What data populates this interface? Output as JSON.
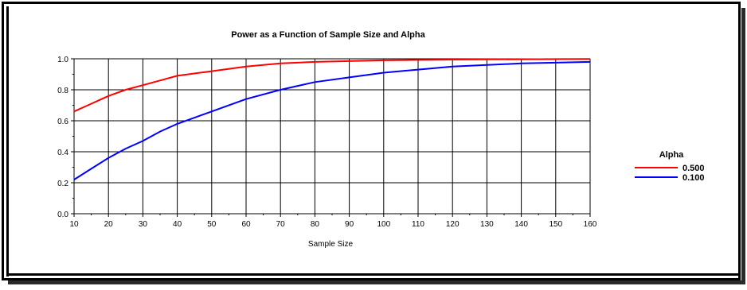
{
  "chart_data": {
    "type": "line",
    "title": "Power as a Function of Sample Size and Alpha",
    "xlabel": "Sample Size",
    "ylabel": "",
    "xlim": [
      10,
      160
    ],
    "ylim": [
      0.0,
      1.0
    ],
    "xticks": [
      "10",
      "20",
      "30",
      "40",
      "50",
      "60",
      "70",
      "80",
      "90",
      "100",
      "110",
      "120",
      "130",
      "140",
      "150",
      "160"
    ],
    "yticks": [
      "0.0",
      "0.2",
      "0.4",
      "0.6",
      "0.8",
      "1.0"
    ],
    "grid": true,
    "legend": {
      "title": "Alpha",
      "placement": "right"
    },
    "series": [
      {
        "name": "0.500",
        "color": "#ff0000",
        "x": [
          10,
          15,
          20,
          25,
          30,
          35,
          40,
          50,
          60,
          70,
          80,
          90,
          100,
          110,
          120,
          130,
          140,
          150,
          160
        ],
        "y": [
          0.66,
          0.71,
          0.76,
          0.8,
          0.83,
          0.86,
          0.89,
          0.92,
          0.95,
          0.97,
          0.98,
          0.985,
          0.99,
          0.993,
          0.995,
          0.996,
          0.997,
          0.998,
          0.999
        ]
      },
      {
        "name": "0.100",
        "color": "#0000ff",
        "x": [
          10,
          15,
          20,
          25,
          30,
          35,
          40,
          50,
          60,
          70,
          80,
          90,
          100,
          110,
          120,
          130,
          140,
          150,
          160
        ],
        "y": [
          0.22,
          0.29,
          0.36,
          0.42,
          0.47,
          0.53,
          0.58,
          0.66,
          0.74,
          0.8,
          0.85,
          0.88,
          0.91,
          0.93,
          0.95,
          0.96,
          0.97,
          0.975,
          0.98
        ]
      }
    ]
  }
}
